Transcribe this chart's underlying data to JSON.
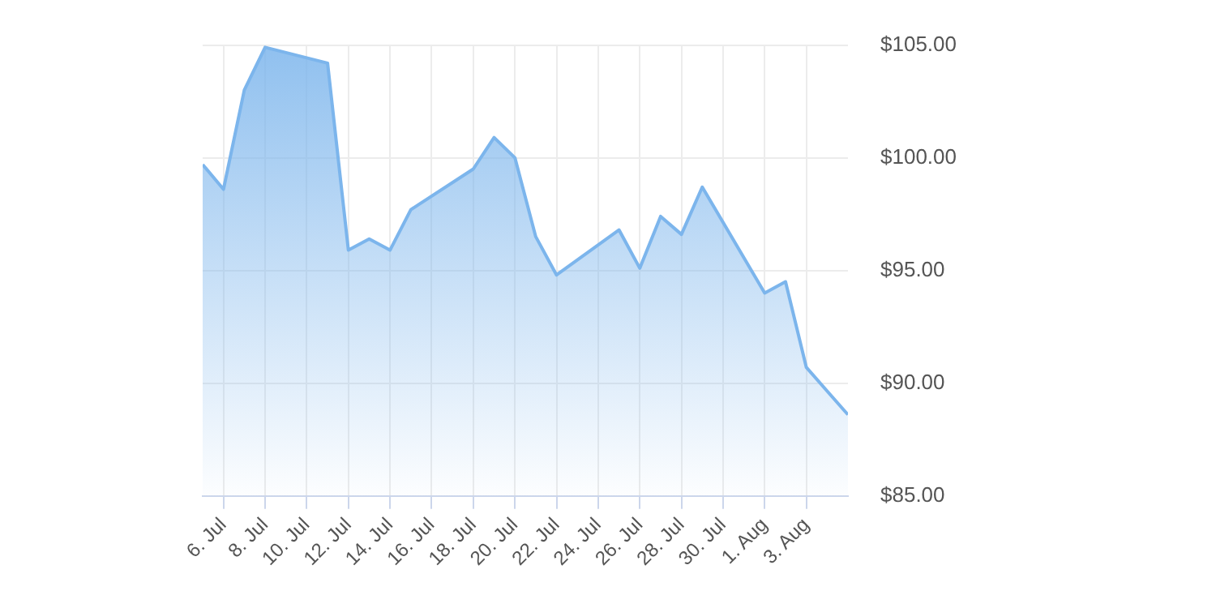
{
  "chart_data": {
    "type": "area",
    "color": "#7cb5ec",
    "x": [
      "--07-05",
      "--07-06",
      "--07-07",
      "--07-08",
      "--07-11",
      "--07-12",
      "--07-13",
      "--07-14",
      "--07-15",
      "--07-18",
      "--07-19",
      "--07-20",
      "--07-21",
      "--07-22",
      "--07-25",
      "--07-26",
      "--07-27",
      "--07-28",
      "--07-29",
      "--08-01",
      "--08-02",
      "--08-03",
      "--08-05"
    ],
    "values": [
      99.7,
      98.6,
      103.0,
      104.9,
      104.2,
      95.9,
      96.4,
      95.9,
      97.7,
      99.5,
      100.9,
      100.0,
      96.5,
      94.8,
      96.8,
      95.1,
      97.4,
      96.6,
      98.7,
      94.0,
      94.5,
      90.7,
      88.6
    ],
    "xlim": [
      "--07-05",
      "--08-05"
    ],
    "xticks": [
      {
        "value": "--07-06",
        "label": "6. Jul"
      },
      {
        "value": "--07-08",
        "label": "8. Jul"
      },
      {
        "value": "--07-10",
        "label": "10. Jul"
      },
      {
        "value": "--07-12",
        "label": "12. Jul"
      },
      {
        "value": "--07-14",
        "label": "14. Jul"
      },
      {
        "value": "--07-16",
        "label": "16. Jul"
      },
      {
        "value": "--07-18",
        "label": "18. Jul"
      },
      {
        "value": "--07-20",
        "label": "20. Jul"
      },
      {
        "value": "--07-22",
        "label": "22. Jul"
      },
      {
        "value": "--07-24",
        "label": "24. Jul"
      },
      {
        "value": "--07-26",
        "label": "26. Jul"
      },
      {
        "value": "--07-28",
        "label": "28. Jul"
      },
      {
        "value": "--07-30",
        "label": "30. Jul"
      },
      {
        "value": "--08-01",
        "label": "1. Aug"
      },
      {
        "value": "--08-03",
        "label": "3. Aug"
      }
    ],
    "ylim": [
      85,
      105
    ],
    "yticks": [
      {
        "value": 85,
        "label": "$85.00"
      },
      {
        "value": 90,
        "label": "$90.00"
      },
      {
        "value": 95,
        "label": "$95.00"
      },
      {
        "value": 100,
        "label": "$100.00"
      },
      {
        "value": 105,
        "label": "$105.00"
      }
    ],
    "grid": true,
    "legend": false,
    "marker": "none",
    "line_style": "solid"
  }
}
